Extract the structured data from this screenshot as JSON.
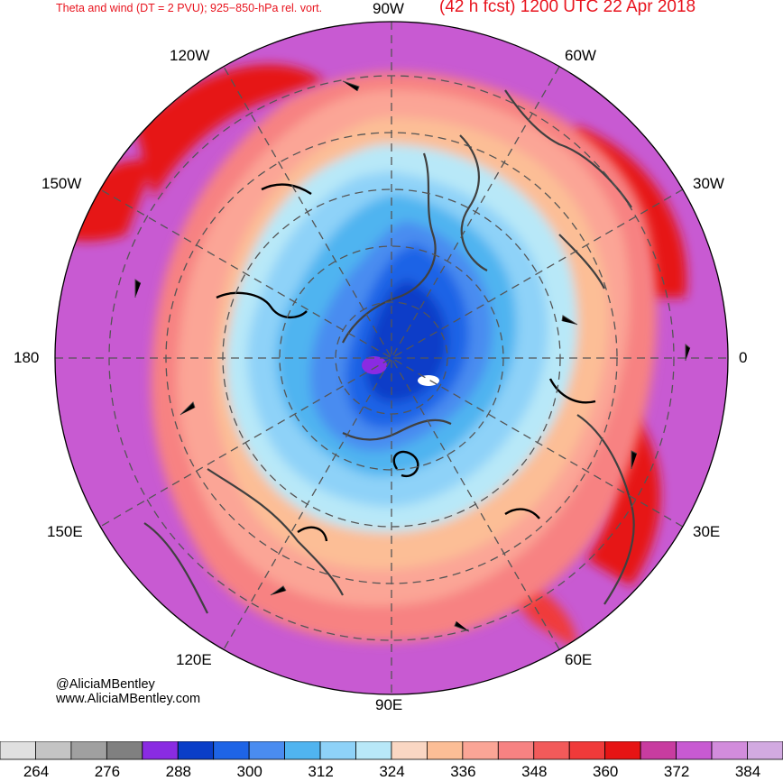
{
  "header": {
    "title_left": "Theta and wind (DT = 2 PVU); 925−850-hPa rel. vort.",
    "title_right": "(42 h fcst) 1200 UTC 22 Apr 2018"
  },
  "longitude_labels": {
    "lon_90w": "90W",
    "lon_60w": "60W",
    "lon_30w": "30W",
    "lon_0": "0",
    "lon_30e": "30E",
    "lon_60e": "60E",
    "lon_90e": "90E",
    "lon_120e": "120E",
    "lon_150e": "150E",
    "lon_180": "180",
    "lon_150w": "150W",
    "lon_120w": "120W"
  },
  "credits": {
    "handle": "@AliciaMBentley",
    "website": "www.AliciaMBentley.com"
  },
  "colorbar": {
    "colors": [
      "#e0e0e0",
      "#c4c4c4",
      "#a0a0a0",
      "#808080",
      "#8a2be2",
      "#0a3ec8",
      "#1e64e6",
      "#4a8cf0",
      "#50b4f0",
      "#8ed2f8",
      "#b8e8f8",
      "#fad7c3",
      "#fcbe96",
      "#fba596",
      "#f78282",
      "#f25a5a",
      "#f03a3a",
      "#e61414",
      "#c83ca0",
      "#c85ad2",
      "#d28cdc",
      "#d2aae1"
    ],
    "labels": [
      "264",
      "276",
      "288",
      "300",
      "312",
      "324",
      "336",
      "348",
      "360",
      "372",
      "384"
    ]
  },
  "map_colors": {
    "outer_purple": "#c85ad2",
    "red_ring": "#e61414",
    "salmon": "#f78282",
    "peach": "#fcbe96",
    "light_blue": "#b8e8f8",
    "mid_blue": "#50b4f0",
    "deep_blue": "#0a3ec8",
    "grid_line": "#555555",
    "coastline": "#404040"
  }
}
